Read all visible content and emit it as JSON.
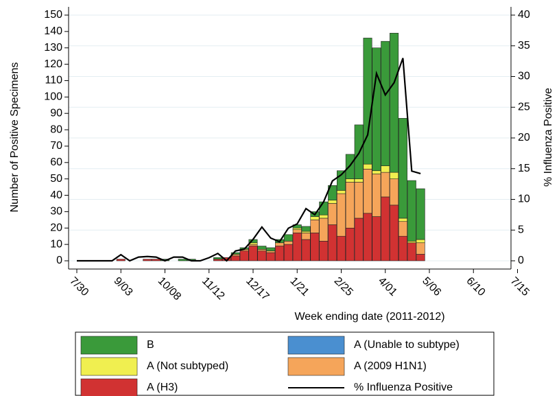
{
  "chart_data": {
    "type": "bar_line",
    "x_title": "Week ending date (2011-2012)",
    "y_title": "Number of Positive Specimens",
    "y2_title": "% Influenza Positive",
    "categories": [
      "7/30",
      null,
      null,
      null,
      null,
      "9/03",
      null,
      null,
      null,
      null,
      "10/08",
      null,
      null,
      null,
      null,
      "11/12",
      null,
      null,
      null,
      null,
      "12/17",
      null,
      null,
      null,
      null,
      "1/21",
      null,
      null,
      null,
      null,
      "2/25",
      null,
      null,
      null,
      null,
      "4/01",
      null,
      null,
      null,
      null,
      "5/06",
      null,
      null,
      null,
      null,
      "6/10",
      null,
      null,
      null,
      null,
      "7/15"
    ],
    "series": [
      {
        "name": "A (H3)",
        "color": "#d13232",
        "values": [
          0,
          0,
          0,
          0,
          0,
          1,
          0,
          0,
          1,
          1,
          0,
          0,
          0,
          0,
          0,
          0,
          1,
          2,
          3,
          6,
          9,
          6,
          5,
          9,
          10,
          17,
          13,
          17,
          12,
          22,
          15,
          20,
          26,
          29,
          27,
          39,
          34,
          15,
          11,
          4,
          null,
          null,
          null,
          null,
          null,
          null,
          null,
          null,
          null,
          null,
          null
        ]
      },
      {
        "name": "A (2009 H1N1)",
        "color": "#f5a55a",
        "values": [
          0,
          0,
          0,
          0,
          0,
          0,
          0,
          0,
          0,
          0,
          0,
          0,
          0,
          0,
          0,
          0,
          0,
          0,
          1,
          1,
          1,
          1,
          1,
          2,
          2,
          2,
          4,
          8,
          14,
          13,
          26,
          28,
          22,
          27,
          26,
          15,
          16,
          9,
          0,
          7,
          null,
          null,
          null,
          null,
          null,
          null,
          null,
          null,
          null,
          null,
          null
        ]
      },
      {
        "name": "A (Unable to subtype)",
        "color": "#4a8fd0",
        "values": [
          0,
          0,
          0,
          0,
          0,
          0,
          0,
          0,
          0,
          0,
          0,
          0,
          0,
          0,
          0,
          0,
          0,
          0,
          0,
          0,
          0,
          0,
          0,
          0,
          0,
          0,
          0,
          0,
          0,
          0,
          0,
          0,
          0,
          0,
          0,
          0,
          0,
          0,
          0,
          0,
          null,
          null,
          null,
          null,
          null,
          null,
          null,
          null,
          null,
          null,
          null
        ]
      },
      {
        "name": "A (Not subtyped)",
        "color": "#f0ef50",
        "values": [
          0,
          0,
          0,
          0,
          0,
          0,
          0,
          0,
          0,
          0,
          0,
          0,
          0,
          0,
          0,
          0,
          0,
          0,
          0,
          0,
          1,
          0,
          0,
          0,
          0,
          1,
          1,
          2,
          2,
          2,
          2,
          2,
          2,
          3,
          2,
          4,
          4,
          2,
          1,
          2,
          null,
          null,
          null,
          null,
          null,
          null,
          null,
          null,
          null,
          null,
          null
        ]
      },
      {
        "name": "B",
        "color": "#3a9a3a",
        "values": [
          0,
          0,
          0,
          0,
          0,
          0,
          0,
          0,
          0,
          0,
          1,
          0,
          1,
          1,
          0,
          0,
          1,
          0,
          1,
          1,
          2,
          2,
          2,
          2,
          4,
          2,
          3,
          3,
          8,
          9,
          12,
          15,
          33,
          77,
          75,
          76,
          85,
          61,
          37,
          31,
          null,
          null,
          null,
          null,
          null,
          null,
          null,
          null,
          null,
          null,
          null
        ]
      },
      {
        "name": "% Influenza Positive",
        "color": "#000000",
        "axis": "y2",
        "line": true,
        "values": [
          0,
          0,
          0,
          0,
          0,
          1,
          0,
          0.6,
          0.7,
          0.6,
          0,
          0.6,
          0.6,
          0,
          0,
          0.5,
          1.2,
          0,
          1.6,
          1.9,
          3.5,
          5.5,
          3.7,
          3.1,
          5.3,
          6,
          8.5,
          7.5,
          9.6,
          13,
          14,
          15.5,
          17.5,
          20.5,
          30.5,
          27,
          29,
          33,
          14.6,
          14.2,
          null,
          null,
          null,
          null,
          null,
          null,
          null,
          null,
          null,
          null,
          null
        ]
      }
    ],
    "ylim": [
      0,
      150
    ],
    "yticks": [
      0,
      10,
      20,
      30,
      40,
      50,
      60,
      70,
      80,
      90,
      100,
      110,
      120,
      130,
      140,
      150
    ],
    "y2lim": [
      0,
      40
    ],
    "y2ticks": [
      0,
      5,
      10,
      15,
      20,
      25,
      30,
      35,
      40
    ],
    "grid": true
  }
}
